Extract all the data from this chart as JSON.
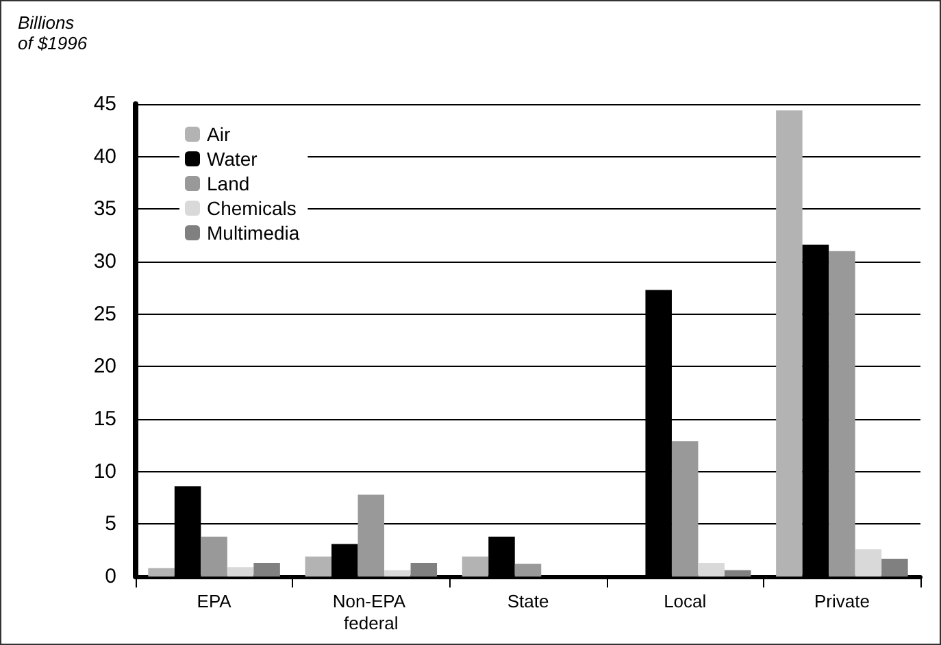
{
  "chart_data": {
    "type": "bar",
    "ylabel": "Billions of $1996",
    "categories": [
      "EPA",
      "Non-EPA federal",
      "State",
      "Local",
      "Private"
    ],
    "series": [
      {
        "name": "Air",
        "color": "#b3b3b3",
        "values": [
          0.8,
          1.9,
          1.9,
          0,
          44.4
        ]
      },
      {
        "name": "Water",
        "color": "#000000",
        "values": [
          8.6,
          3.1,
          3.8,
          27.3,
          31.6
        ]
      },
      {
        "name": "Land",
        "color": "#999999",
        "values": [
          3.8,
          7.8,
          1.2,
          12.9,
          31.0
        ]
      },
      {
        "name": "Chemicals",
        "color": "#d9d9d9",
        "values": [
          0.9,
          0.6,
          0,
          1.3,
          2.6
        ]
      },
      {
        "name": "Multimedia",
        "color": "#808080",
        "values": [
          1.3,
          1.3,
          0,
          0.6,
          1.7
        ]
      }
    ],
    "ylim": [
      0,
      45
    ],
    "yticks": [
      0,
      5,
      10,
      15,
      20,
      25,
      30,
      35,
      40,
      45
    ],
    "grid": "y",
    "legend": "top left"
  }
}
